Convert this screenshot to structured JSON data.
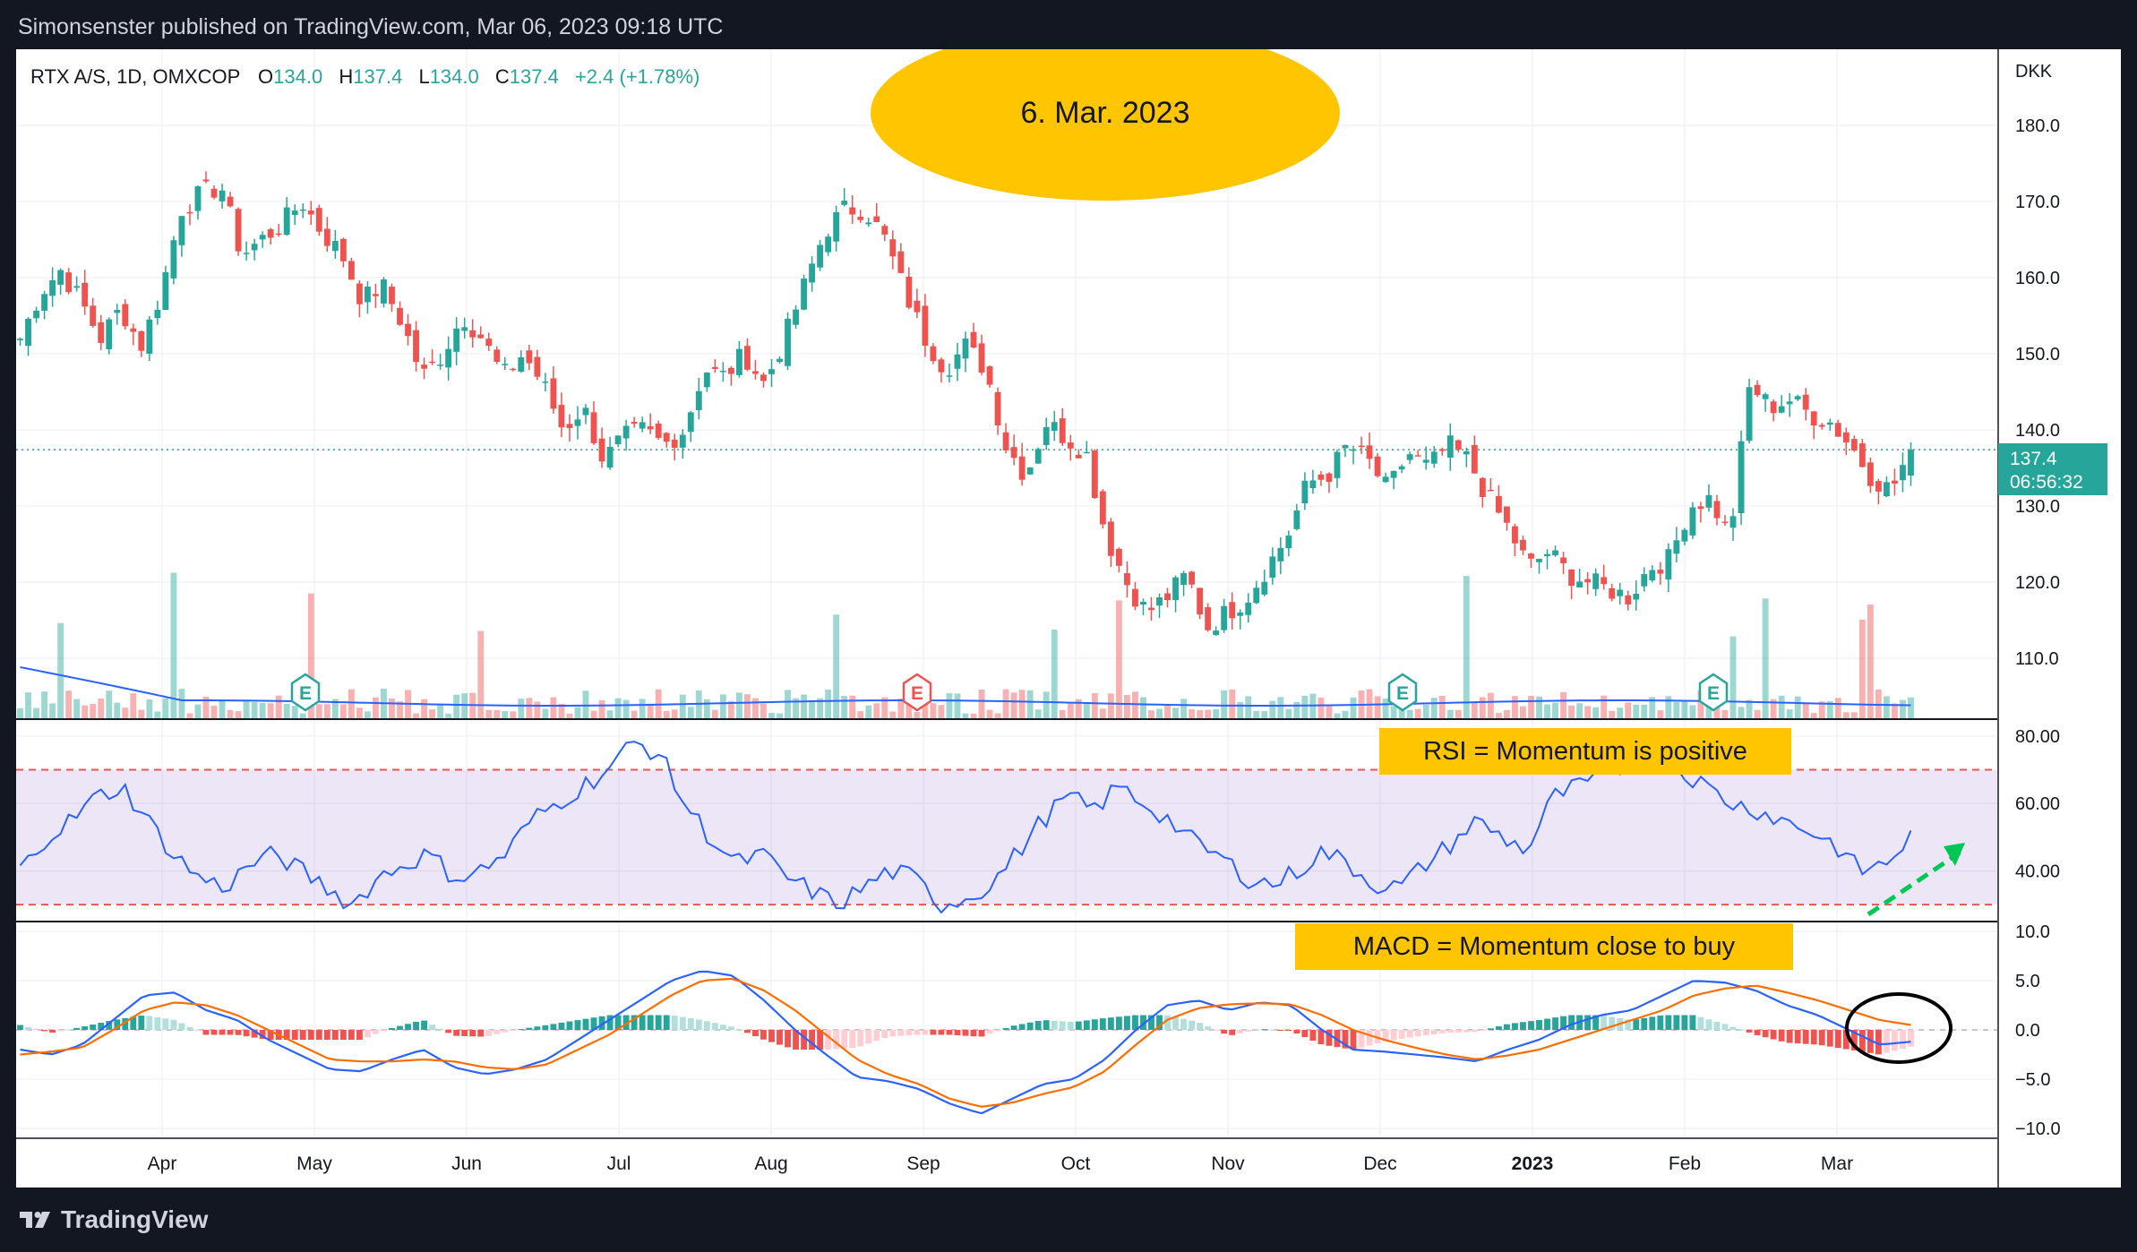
{
  "header": {
    "published_text": "Simonsenster published on TradingView.com, Mar 06, 2023 09:18 UTC"
  },
  "legend": {
    "symbol": "RTX A/S, 1D, OMXCOP",
    "o_label": "O",
    "o_value": "134.0",
    "h_label": "H",
    "h_value": "137.4",
    "l_label": "L",
    "l_value": "134.0",
    "c_label": "C",
    "c_value": "137.4",
    "change": "+2.4 (+1.78%)"
  },
  "annotations": {
    "date_ellipse": "6. Mar. 2023",
    "rsi_note": "RSI = Momentum is positive",
    "macd_note": "MACD = Momentum close to buy"
  },
  "price_axis": {
    "currency": "DKK",
    "last_price": "137.4",
    "countdown": "06:56:32"
  },
  "footer": {
    "brand": "TradingView"
  },
  "colors": {
    "up": "#26a69a",
    "down": "#ef5350",
    "blue_line": "#2962ff",
    "orange_line": "#ff6d00",
    "annotation_bg": "#ffc600",
    "rsi_band": "#7e57c2"
  },
  "chart_data": [
    {
      "type": "candlestick",
      "title": "RTX A/S, 1D, OMXCOP",
      "ylabel": "DKK",
      "ylim": [
        102,
        190
      ],
      "y_ticks": [
        "180.0",
        "170.0",
        "160.0",
        "150.0",
        "140.0",
        "130.0",
        "120.0",
        "110.0"
      ],
      "x_ticks": [
        "Apr",
        "May",
        "Jun",
        "Jul",
        "Aug",
        "Sep",
        "Oct",
        "Nov",
        "Dec",
        "2023",
        "Feb",
        "Mar"
      ],
      "close_path": [
        152,
        158,
        161,
        157,
        152,
        156,
        151,
        158,
        169,
        171,
        172,
        163,
        165,
        167,
        170,
        166,
        163,
        157,
        159,
        154,
        147,
        150,
        155,
        152,
        147,
        150,
        146,
        140,
        143,
        136,
        139,
        140,
        138,
        140,
        148,
        147,
        150,
        146,
        152,
        159,
        166,
        169,
        169,
        165,
        158,
        152,
        148,
        151,
        148,
        138,
        134,
        141,
        139,
        137,
        126,
        120,
        116,
        118,
        121,
        114,
        116,
        118,
        122,
        126,
        133,
        134,
        138,
        136,
        132,
        137,
        135,
        138,
        136,
        131,
        127,
        122,
        124,
        121,
        120,
        119,
        118,
        122,
        123,
        130,
        131,
        126,
        146,
        143,
        144,
        142,
        141,
        138,
        134,
        132,
        137.4
      ],
      "last_close": 137.4,
      "earnings_markers": [
        "E",
        "E",
        "E",
        "E"
      ]
    },
    {
      "type": "line",
      "title": "RSI",
      "ylim": [
        25,
        85
      ],
      "y_ticks": [
        "80.00",
        "60.00",
        "40.00"
      ],
      "bands": [
        30,
        70
      ],
      "rsi_path": [
        40,
        50,
        55,
        62,
        65,
        55,
        45,
        38,
        35,
        42,
        45,
        40,
        35,
        30,
        38,
        42,
        45,
        38,
        40,
        45,
        55,
        60,
        65,
        70,
        78,
        75,
        60,
        50,
        42,
        45,
        38,
        34,
        30,
        35,
        40,
        38,
        30,
        32,
        36,
        45,
        55,
        62,
        58,
        65,
        60,
        55,
        48,
        44,
        38,
        36,
        40,
        46,
        42,
        36,
        35,
        42,
        48,
        55,
        50,
        46,
        62,
        65,
        68,
        72,
        75,
        70,
        65,
        60,
        58,
        55,
        52,
        48,
        40,
        42,
        50
      ]
    },
    {
      "type": "line",
      "title": "MACD",
      "ylim": [
        -11,
        11
      ],
      "y_ticks": [
        "10.0",
        "5.0",
        "0.0",
        "−5.0",
        "−10.0"
      ],
      "macd_path": [
        -2,
        -2.5,
        -1.5,
        1,
        3.5,
        3.8,
        2,
        1,
        -1,
        -2.5,
        -4,
        -4.2,
        -3,
        -2,
        -3.8,
        -4.5,
        -4,
        -3,
        -1,
        1,
        3,
        5,
        6,
        5.5,
        3,
        0,
        -2.5,
        -4.8,
        -5.2,
        -6,
        -7.5,
        -8.5,
        -7,
        -5.5,
        -5,
        -3,
        0,
        2.5,
        3,
        2,
        2.8,
        2.5,
        0,
        -2,
        -2.2,
        -2.5,
        -2.8,
        -3.2,
        -2,
        -1,
        0.5,
        1.5,
        2,
        3.5,
        5,
        4.8,
        4,
        2.5,
        1.5,
        0,
        -1.5,
        -1.2
      ],
      "signal_path": [
        -2.5,
        -2.2,
        -1.8,
        0,
        2,
        2.8,
        2.5,
        1.5,
        0,
        -1.5,
        -3,
        -3.2,
        -3.2,
        -3,
        -3.2,
        -3.8,
        -4,
        -3.5,
        -2,
        -0.5,
        1.5,
        3.5,
        5,
        5.2,
        4,
        2,
        -0.5,
        -3,
        -4.5,
        -5.5,
        -7,
        -7.8,
        -7.4,
        -6.5,
        -5.8,
        -4.2,
        -1.5,
        1,
        2.2,
        2.6,
        2.7,
        2.6,
        1.5,
        0,
        -1,
        -1.8,
        -2.5,
        -3,
        -2.6,
        -2,
        -1,
        0,
        1,
        2,
        3.5,
        4.2,
        4.5,
        3.8,
        3,
        2,
        1,
        0.5
      ],
      "hist_path": [
        0.5,
        -0.3,
        0.3,
        1,
        1.5,
        1,
        -0.5,
        -0.5,
        -1,
        -1,
        -1,
        -1,
        0.2,
        1,
        -0.6,
        -0.7,
        0,
        0.5,
        1,
        1.5,
        1.5,
        1.5,
        1,
        0.3,
        -1,
        -2,
        -2,
        -1.8,
        -0.7,
        -0.5,
        -0.5,
        -0.7,
        0.4,
        1,
        0.8,
        1.2,
        1.5,
        1.5,
        0.8,
        -0.6,
        0.1,
        -0.1,
        -1.5,
        -2,
        -1.2,
        -0.7,
        -0.3,
        -0.2,
        0.6,
        1,
        1.5,
        1.5,
        1,
        1.5,
        1.5,
        0.6,
        -0.5,
        -1.3,
        -1.5,
        -2,
        -2.5,
        -1.7
      ]
    }
  ]
}
